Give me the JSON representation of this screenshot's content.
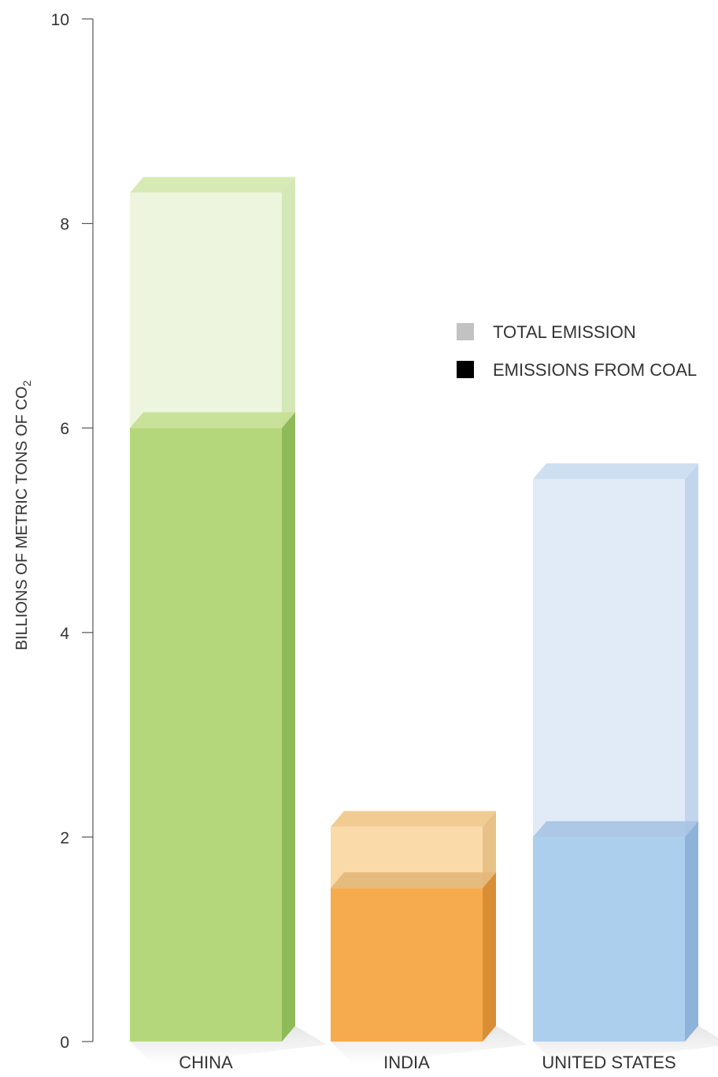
{
  "chart_data": {
    "type": "bar",
    "title": "",
    "xlabel": "",
    "ylabel": "BILLIONS OF METRIC TONS OF CO",
    "ylabel_subscript": "2",
    "ylim": [
      0,
      10
    ],
    "yticks": [
      "0",
      "2",
      "4",
      "6",
      "8",
      "10"
    ],
    "grid": false,
    "legend_position": "right",
    "categories": [
      "CHINA",
      "INDIA",
      "UNITED STATES"
    ],
    "series": [
      {
        "name": "TOTAL EMISSION",
        "values": [
          8.3,
          2.1,
          5.5
        ]
      },
      {
        "name": "EMISSIONS FROM COAL",
        "values": [
          6.0,
          1.5,
          2.0
        ]
      }
    ],
    "legend": [
      {
        "label": "TOTAL EMISSION",
        "swatch_color": "#c2c2c2"
      },
      {
        "label": "EMISSIONS FROM COAL",
        "swatch_color": "#000000"
      }
    ],
    "colors": {
      "CHINA": {
        "total_front": "#edf4dc",
        "total_side": "#d2e6b2",
        "total_top": "#d7eab6",
        "coal_front": "#b4d77b",
        "coal_side": "#8fba59",
        "coal_top": "#c3e092"
      },
      "INDIA": {
        "total_front": "#fad8a4",
        "total_side": "#e7be82",
        "total_top": "#f1cc92",
        "coal_front": "#f5ab4e",
        "coal_side": "#d98e36",
        "coal_top": "#e3b779"
      },
      "UNITED STATES": {
        "total_front": "#dfeaf7",
        "total_side": "#bfd3ec",
        "total_top": "#cfdff2",
        "coal_front": "#accfee",
        "coal_side": "#8eb3d9",
        "coal_top": "#a7c3e3"
      }
    }
  }
}
